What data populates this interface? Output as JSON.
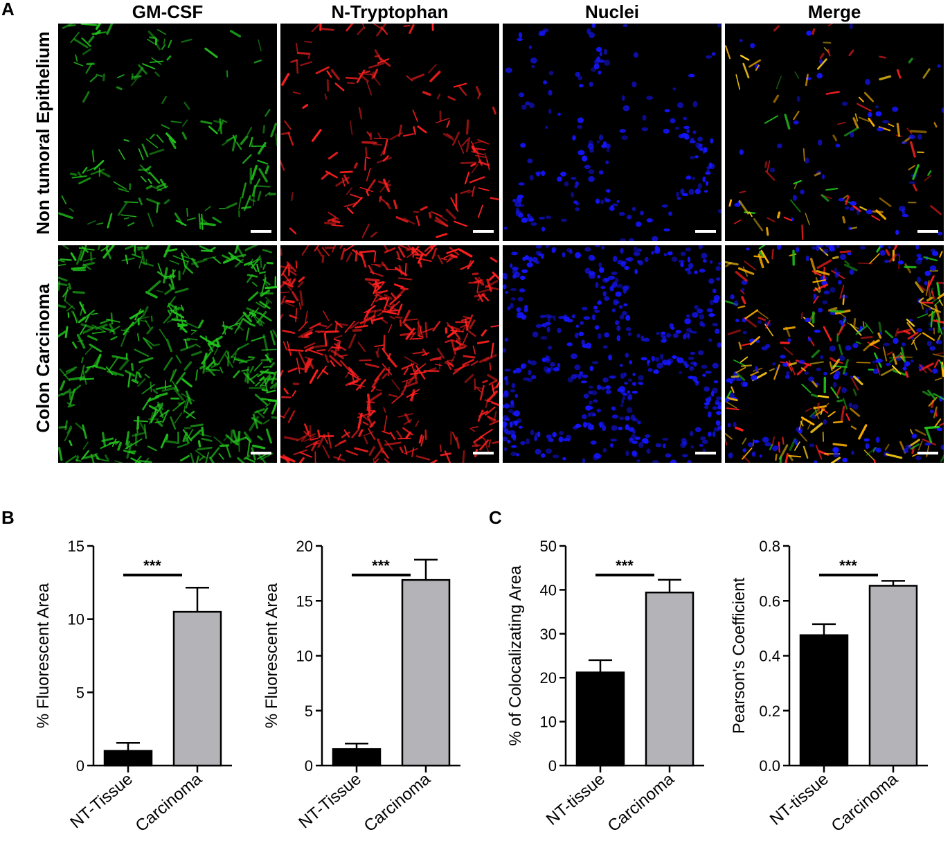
{
  "panel_labels": {
    "a": "A",
    "b": "B",
    "c": "C"
  },
  "columns": [
    "GM-CSF",
    "N-Tryptophan",
    "Nuclei",
    "Merge"
  ],
  "rows": [
    "Non tumoral Epithelium",
    "Colon Carcinoma"
  ],
  "colors": {
    "green": "#22c21d",
    "red": "#ff2020",
    "blue": "#1515ff",
    "bar_nt": "#000000",
    "bar_carcinoma": "#b3b3b8"
  },
  "chart_data": [
    {
      "type": "bar",
      "categories": [
        "NT-Tissue",
        "Carcinoma"
      ],
      "values": [
        1.0,
        10.5
      ],
      "errors": [
        0.55,
        1.65
      ],
      "ylabel": "% Fluorescent Area",
      "ylim": [
        0,
        15
      ],
      "yticks": [
        "0",
        "5",
        "10",
        "15"
      ],
      "significance": "***"
    },
    {
      "type": "bar",
      "categories": [
        "NT-Tissue",
        "Carcinoma"
      ],
      "values": [
        1.5,
        16.9
      ],
      "errors": [
        0.5,
        1.85
      ],
      "ylabel": "% Fluorescent Area",
      "ylim": [
        0,
        20
      ],
      "yticks": [
        "0",
        "5",
        "10",
        "15",
        "20"
      ],
      "significance": "***"
    },
    {
      "type": "bar",
      "categories": [
        "NT-tissue",
        "Carcinoma"
      ],
      "values": [
        21.2,
        39.4
      ],
      "errors": [
        2.8,
        2.9
      ],
      "ylabel": "% of Colocalizating Area",
      "ylim": [
        0,
        50
      ],
      "yticks": [
        "0",
        "10",
        "20",
        "30",
        "40",
        "50"
      ],
      "significance": "***"
    },
    {
      "type": "bar",
      "categories": [
        "NT-tissue",
        "Carcinoma"
      ],
      "values": [
        0.475,
        0.655
      ],
      "errors": [
        0.04,
        0.018
      ],
      "ylabel": "Pearson's Coefficient",
      "ylim": [
        0,
        0.8
      ],
      "yticks": [
        "0.0",
        "0.2",
        "0.4",
        "0.6",
        "0.8"
      ],
      "significance": "***"
    }
  ]
}
